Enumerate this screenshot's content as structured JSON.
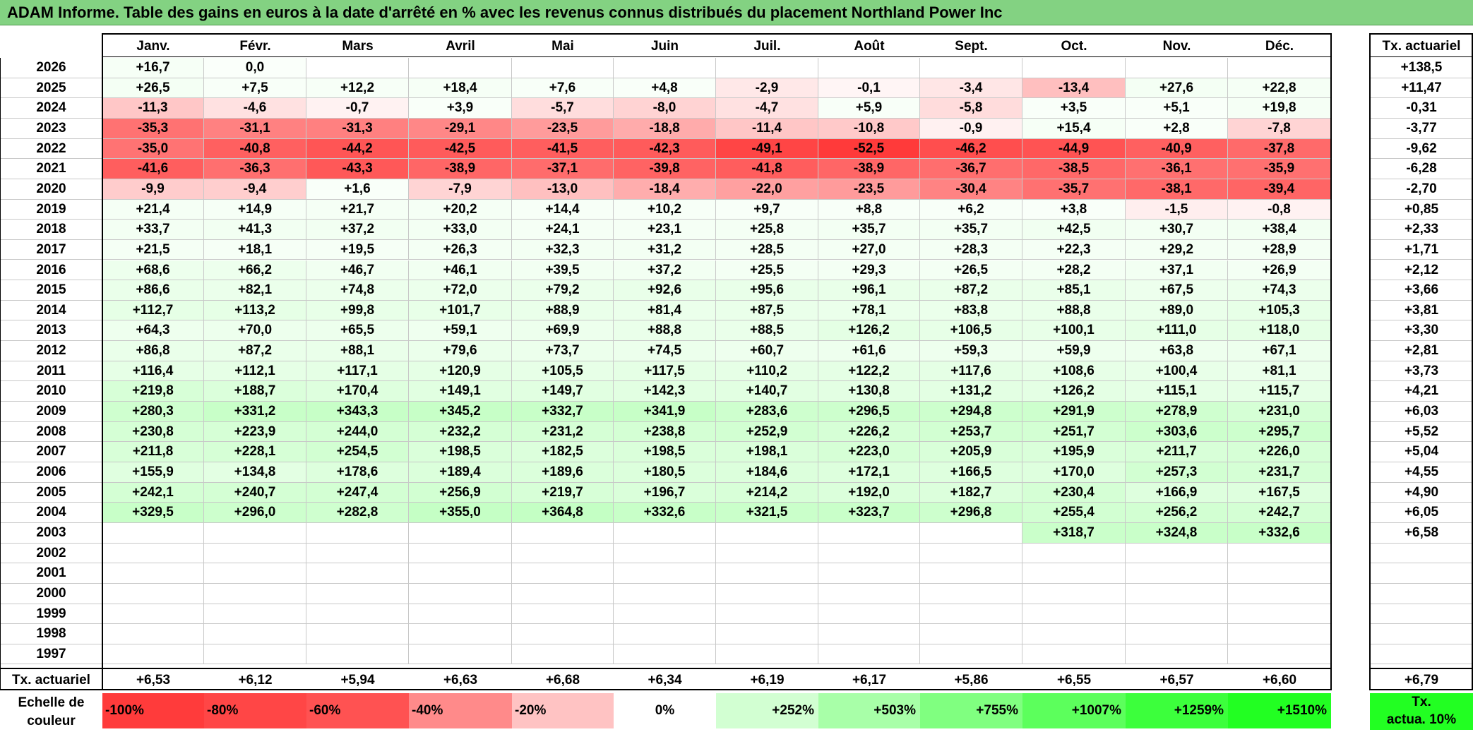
{
  "title": "ADAM Informe. Table des gains en euros à la date d'arrêté en % avec les revenus connus distribués du placement Northland Power Inc",
  "months": [
    "Janv.",
    "Févr.",
    "Mars",
    "Avril",
    "Mai",
    "Juin",
    "Juil.",
    "Août",
    "Sept.",
    "Oct.",
    "Nov.",
    "Déc."
  ],
  "annual_header": "Tx. actuariel",
  "footer_label": "Tx. actuariel",
  "rows": [
    {
      "year": "2026",
      "values": [
        "+16,7",
        "0,0",
        "",
        "",
        "",
        "",
        "",
        "",
        "",
        "",
        "",
        ""
      ],
      "annual": "+138,5"
    },
    {
      "year": "2025",
      "values": [
        "+26,5",
        "+7,5",
        "+12,2",
        "+18,4",
        "+7,6",
        "+4,8",
        "-2,9",
        "-0,1",
        "-3,4",
        "-13,4",
        "+27,6",
        "+22,8"
      ],
      "annual": "+11,47"
    },
    {
      "year": "2024",
      "values": [
        "-11,3",
        "-4,6",
        "-0,7",
        "+3,9",
        "-5,7",
        "-8,0",
        "-4,7",
        "+5,9",
        "-5,8",
        "+3,5",
        "+5,1",
        "+19,8"
      ],
      "annual": "-0,31"
    },
    {
      "year": "2023",
      "values": [
        "-35,3",
        "-31,1",
        "-31,3",
        "-29,1",
        "-23,5",
        "-18,8",
        "-11,4",
        "-10,8",
        "-0,9",
        "+15,4",
        "+2,8",
        "-7,8"
      ],
      "annual": "-3,77"
    },
    {
      "year": "2022",
      "values": [
        "-35,0",
        "-40,8",
        "-44,2",
        "-42,5",
        "-41,5",
        "-42,3",
        "-49,1",
        "-52,5",
        "-46,2",
        "-44,9",
        "-40,9",
        "-37,8"
      ],
      "annual": "-9,62"
    },
    {
      "year": "2021",
      "values": [
        "-41,6",
        "-36,3",
        "-43,3",
        "-38,9",
        "-37,1",
        "-39,8",
        "-41,8",
        "-38,9",
        "-36,7",
        "-38,5",
        "-36,1",
        "-35,9"
      ],
      "annual": "-6,28"
    },
    {
      "year": "2020",
      "values": [
        "-9,9",
        "-9,4",
        "+1,6",
        "-7,9",
        "-13,0",
        "-18,4",
        "-22,0",
        "-23,5",
        "-30,4",
        "-35,7",
        "-38,1",
        "-39,4"
      ],
      "annual": "-2,70"
    },
    {
      "year": "2019",
      "values": [
        "+21,4",
        "+14,9",
        "+21,7",
        "+20,2",
        "+14,4",
        "+10,2",
        "+9,7",
        "+8,8",
        "+6,2",
        "+3,8",
        "-1,5",
        "-0,8"
      ],
      "annual": "+0,85"
    },
    {
      "year": "2018",
      "values": [
        "+33,7",
        "+41,3",
        "+37,2",
        "+33,0",
        "+24,1",
        "+23,1",
        "+25,8",
        "+35,7",
        "+35,7",
        "+42,5",
        "+30,7",
        "+38,4"
      ],
      "annual": "+2,33"
    },
    {
      "year": "2017",
      "values": [
        "+21,5",
        "+18,1",
        "+19,5",
        "+26,3",
        "+32,3",
        "+31,2",
        "+28,5",
        "+27,0",
        "+28,3",
        "+22,3",
        "+29,2",
        "+28,9"
      ],
      "annual": "+1,71"
    },
    {
      "year": "2016",
      "values": [
        "+68,6",
        "+66,2",
        "+46,7",
        "+46,1",
        "+39,5",
        "+37,2",
        "+25,5",
        "+29,3",
        "+26,5",
        "+28,2",
        "+37,1",
        "+26,9"
      ],
      "annual": "+2,12"
    },
    {
      "year": "2015",
      "values": [
        "+86,6",
        "+82,1",
        "+74,8",
        "+72,0",
        "+79,2",
        "+92,6",
        "+95,6",
        "+96,1",
        "+87,2",
        "+85,1",
        "+67,5",
        "+74,3"
      ],
      "annual": "+3,66"
    },
    {
      "year": "2014",
      "values": [
        "+112,7",
        "+113,2",
        "+99,8",
        "+101,7",
        "+88,9",
        "+81,4",
        "+87,5",
        "+78,1",
        "+83,8",
        "+88,8",
        "+89,0",
        "+105,3"
      ],
      "annual": "+3,81"
    },
    {
      "year": "2013",
      "values": [
        "+64,3",
        "+70,0",
        "+65,5",
        "+59,1",
        "+69,9",
        "+88,8",
        "+88,5",
        "+126,2",
        "+106,5",
        "+100,1",
        "+111,0",
        "+118,0"
      ],
      "annual": "+3,30"
    },
    {
      "year": "2012",
      "values": [
        "+86,8",
        "+87,2",
        "+88,1",
        "+79,6",
        "+73,7",
        "+74,5",
        "+60,7",
        "+61,6",
        "+59,3",
        "+59,9",
        "+63,8",
        "+67,1"
      ],
      "annual": "+2,81"
    },
    {
      "year": "2011",
      "values": [
        "+116,4",
        "+112,1",
        "+117,1",
        "+120,9",
        "+105,5",
        "+117,5",
        "+110,2",
        "+122,2",
        "+117,6",
        "+108,6",
        "+100,4",
        "+81,1"
      ],
      "annual": "+3,73"
    },
    {
      "year": "2010",
      "values": [
        "+219,8",
        "+188,7",
        "+170,4",
        "+149,1",
        "+149,7",
        "+142,3",
        "+140,7",
        "+130,8",
        "+131,2",
        "+126,2",
        "+115,1",
        "+115,7"
      ],
      "annual": "+4,21"
    },
    {
      "year": "2009",
      "values": [
        "+280,3",
        "+331,2",
        "+343,3",
        "+345,2",
        "+332,7",
        "+341,9",
        "+283,6",
        "+296,5",
        "+294,8",
        "+291,9",
        "+278,9",
        "+231,0"
      ],
      "annual": "+6,03"
    },
    {
      "year": "2008",
      "values": [
        "+230,8",
        "+223,9",
        "+244,0",
        "+232,2",
        "+231,2",
        "+238,8",
        "+252,9",
        "+226,2",
        "+253,7",
        "+251,7",
        "+303,6",
        "+295,7"
      ],
      "annual": "+5,52"
    },
    {
      "year": "2007",
      "values": [
        "+211,8",
        "+228,1",
        "+254,5",
        "+198,5",
        "+182,5",
        "+198,5",
        "+198,1",
        "+223,0",
        "+205,9",
        "+195,9",
        "+211,7",
        "+226,0"
      ],
      "annual": "+5,04"
    },
    {
      "year": "2006",
      "values": [
        "+155,9",
        "+134,8",
        "+178,6",
        "+189,4",
        "+189,6",
        "+180,5",
        "+184,6",
        "+172,1",
        "+166,5",
        "+170,0",
        "+257,3",
        "+231,7"
      ],
      "annual": "+4,55"
    },
    {
      "year": "2005",
      "values": [
        "+242,1",
        "+240,7",
        "+247,4",
        "+256,9",
        "+219,7",
        "+196,7",
        "+214,2",
        "+192,0",
        "+182,7",
        "+230,4",
        "+166,9",
        "+167,5"
      ],
      "annual": "+4,90"
    },
    {
      "year": "2004",
      "values": [
        "+329,5",
        "+296,0",
        "+282,8",
        "+355,0",
        "+364,8",
        "+332,6",
        "+321,5",
        "+323,7",
        "+296,8",
        "+255,4",
        "+256,2",
        "+242,7"
      ],
      "annual": "+6,05"
    },
    {
      "year": "2003",
      "values": [
        "",
        "",
        "",
        "",
        "",
        "",
        "",
        "",
        "",
        "+318,7",
        "+324,8",
        "+332,6"
      ],
      "annual": "+6,58"
    },
    {
      "year": "2002",
      "values": [
        "",
        "",
        "",
        "",
        "",
        "",
        "",
        "",
        "",
        "",
        "",
        ""
      ],
      "annual": ""
    },
    {
      "year": "2001",
      "values": [
        "",
        "",
        "",
        "",
        "",
        "",
        "",
        "",
        "",
        "",
        "",
        ""
      ],
      "annual": ""
    },
    {
      "year": "2000",
      "values": [
        "",
        "",
        "",
        "",
        "",
        "",
        "",
        "",
        "",
        "",
        "",
        ""
      ],
      "annual": ""
    },
    {
      "year": "1999",
      "values": [
        "",
        "",
        "",
        "",
        "",
        "",
        "",
        "",
        "",
        "",
        "",
        ""
      ],
      "annual": ""
    },
    {
      "year": "1998",
      "values": [
        "",
        "",
        "",
        "",
        "",
        "",
        "",
        "",
        "",
        "",
        "",
        ""
      ],
      "annual": ""
    },
    {
      "year": "1997",
      "values": [
        "",
        "",
        "",
        "",
        "",
        "",
        "",
        "",
        "",
        "",
        "",
        ""
      ],
      "annual": ""
    }
  ],
  "footer_values": [
    "+6,53",
    "+6,12",
    "+5,94",
    "+6,63",
    "+6,68",
    "+6,34",
    "+6,19",
    "+6,17",
    "+5,86",
    "+6,55",
    "+6,57",
    "+6,60"
  ],
  "footer_annual": "+6,79",
  "scale_label_line1": "Echelle de",
  "scale_label_line2": "couleur",
  "scale": [
    {
      "label": "-100%",
      "color": "#ff3b3b"
    },
    {
      "label": "-80%",
      "color": "#ff4646"
    },
    {
      "label": "-60%",
      "color": "#ff5252"
    },
    {
      "label": "-40%",
      "color": "#ff8a8a"
    },
    {
      "label": "-20%",
      "color": "#ffc3c3"
    },
    {
      "label": "0%",
      "color": "#ffffff"
    },
    {
      "label": "+252%",
      "color": "#d2ffd2"
    },
    {
      "label": "+503%",
      "color": "#a8ffa8"
    },
    {
      "label": "+755%",
      "color": "#80ff80"
    },
    {
      "label": "+1007%",
      "color": "#5cff5c"
    },
    {
      "label": "+1259%",
      "color": "#3cff3c"
    },
    {
      "label": "+1510%",
      "color": "#22ff22"
    }
  ],
  "scale_annual_line1": "Tx.",
  "scale_annual_line2": "actua. 10%",
  "scale_annual_color": "#22ff22"
}
